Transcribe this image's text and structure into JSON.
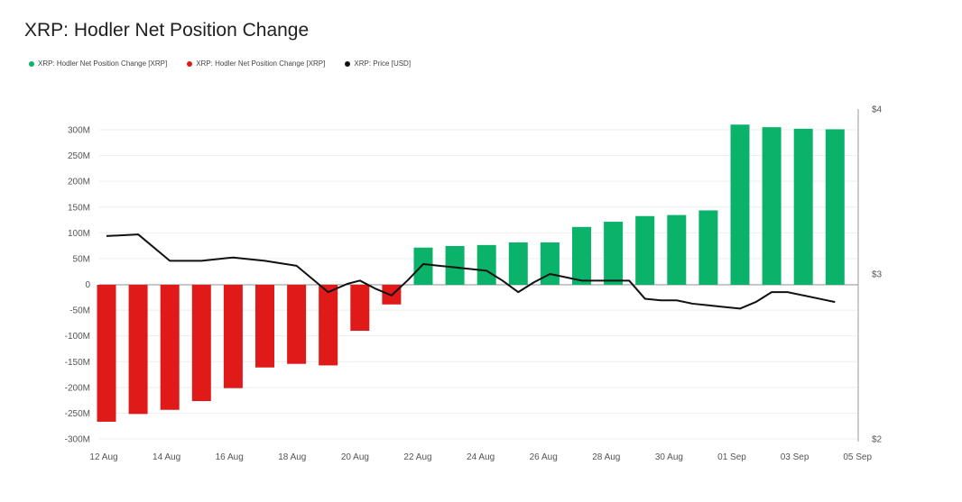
{
  "chart_data": {
    "type": "bar",
    "title": "XRP: Hodler Net Position Change",
    "legend": [
      {
        "label": "XRP: Hodler Net Position Change [XRP]",
        "color": "#0bb36a"
      },
      {
        "label": "XRP: Hodler Net Position Change [XRP]",
        "color": "#e01919"
      },
      {
        "label": "XRP: Price [USD]",
        "color": "#111111"
      }
    ],
    "y_left": {
      "ticks": [
        "300M",
        "250M",
        "200M",
        "150M",
        "100M",
        "50M",
        "0",
        "-50M",
        "-100M",
        "-150M",
        "-200M",
        "-250M",
        "-300M"
      ],
      "ylim": [
        -300,
        300
      ],
      "unit": "M"
    },
    "y_right": {
      "ticks": [
        "$4",
        "$3",
        "$2"
      ],
      "ylim": [
        2,
        4
      ]
    },
    "x_ticks": [
      "12 Aug",
      "14 Aug",
      "16 Aug",
      "18 Aug",
      "20 Aug",
      "22 Aug",
      "24 Aug",
      "26 Aug",
      "28 Aug",
      "30 Aug",
      "01 Sep",
      "03 Sep",
      "05 Sep"
    ],
    "grid": true,
    "legend_position": "top-left",
    "bars": {
      "x": [
        0.0,
        1.0,
        2.0,
        3.0,
        4.0,
        5.0,
        6.0,
        7.0,
        8.0,
        9.0,
        10.0,
        11.0,
        12.0,
        13.0,
        14.0,
        15.0,
        16.0,
        17.0,
        18.0,
        19.0,
        20.0,
        21.0,
        22.0,
        23.0
      ],
      "values": [
        -265,
        -250,
        -242,
        -225,
        -200,
        -160,
        -153,
        -156,
        -89,
        -38,
        72,
        75,
        77,
        82,
        82,
        112,
        122,
        133,
        135,
        144,
        310,
        305,
        302,
        301
      ]
    },
    "price": {
      "x": [
        0,
        1,
        2,
        3,
        4,
        5,
        6,
        7,
        7.6,
        8,
        8.5,
        9,
        9.5,
        10,
        10.5,
        11,
        11.5,
        12,
        12.5,
        13,
        13.5,
        14,
        14.5,
        15,
        15.5,
        16,
        16.5,
        17,
        17.5,
        18,
        18.5,
        19,
        19.5,
        20,
        20.5,
        21,
        21.5,
        22,
        22.5,
        23
      ],
      "values": [
        3.23,
        3.24,
        3.08,
        3.08,
        3.1,
        3.08,
        3.05,
        2.89,
        2.94,
        2.96,
        2.91,
        2.87,
        2.96,
        3.06,
        3.05,
        3.04,
        3.03,
        3.02,
        2.96,
        2.89,
        2.95,
        3.0,
        2.98,
        2.96,
        2.96,
        2.96,
        2.96,
        2.85,
        2.84,
        2.84,
        2.82,
        2.81,
        2.8,
        2.79,
        2.83,
        2.89,
        2.89,
        2.87,
        2.85,
        2.83
      ]
    }
  }
}
